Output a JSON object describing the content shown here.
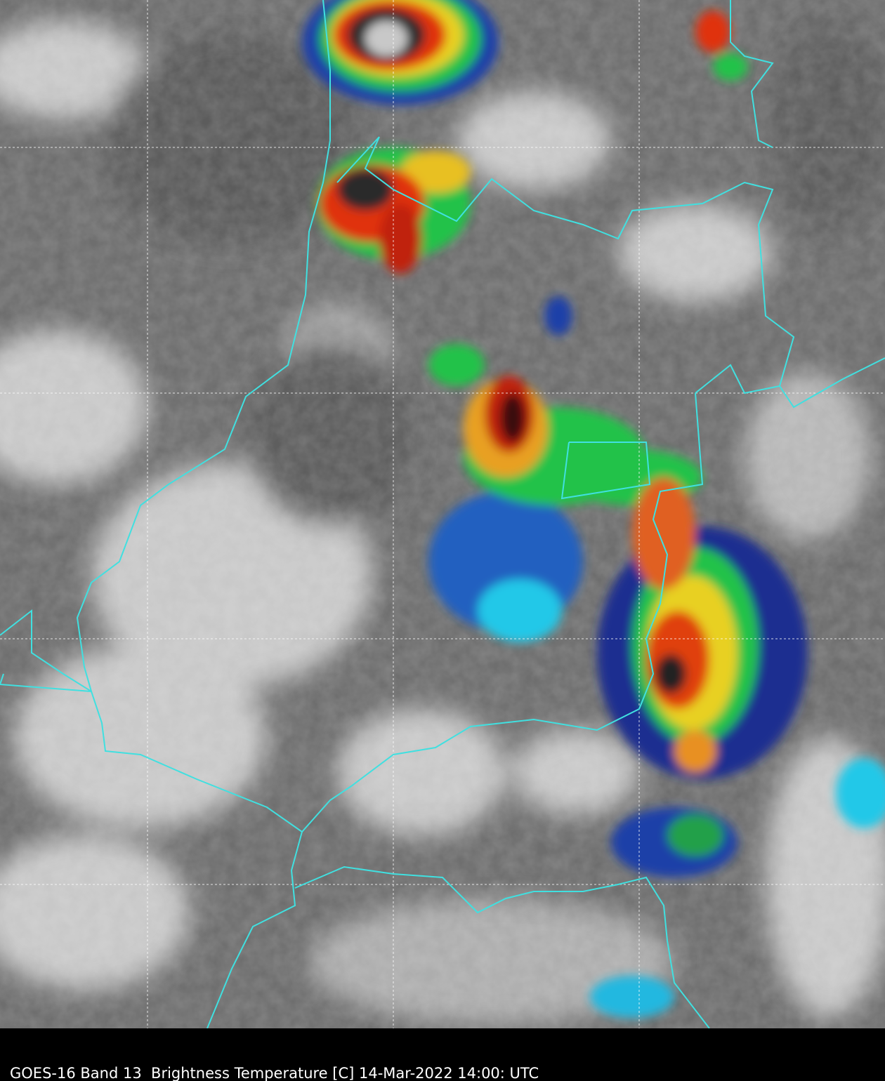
{
  "caption": "GOES-16 Band 13  Brightness Temperature [C] 14-Mar-2022 14:00: UTC"
}
